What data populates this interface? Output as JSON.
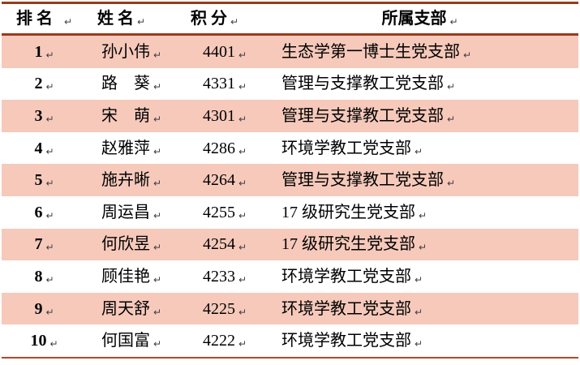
{
  "table": {
    "title_semantics": "party-branch-points-ranking-table",
    "paragraph_mark": "↵",
    "colors": {
      "row_highlight": "#f6c9bb",
      "rule_top_and_header": "#9c3a1e",
      "rule_bottom": "#b5482a",
      "text": "#000000"
    },
    "columns": [
      {
        "key": "rank",
        "label": "排 名"
      },
      {
        "key": "name",
        "label": "姓 名"
      },
      {
        "key": "points",
        "label": "积 分"
      },
      {
        "key": "branch",
        "label": "所属支部"
      }
    ],
    "rows": [
      {
        "rank": "1",
        "name": "孙小伟",
        "points": "4401",
        "branch": "生态学第一博士生党支部",
        "highlighted": true
      },
      {
        "rank": "2",
        "name": "路　葵",
        "points": "4331",
        "branch": "管理与支撑教工党支部",
        "highlighted": false
      },
      {
        "rank": "3",
        "name": "宋　萌",
        "points": "4301",
        "branch": "管理与支撑教工党支部",
        "highlighted": true
      },
      {
        "rank": "4",
        "name": "赵雅萍",
        "points": "4286",
        "branch": "环境学教工党支部",
        "highlighted": false
      },
      {
        "rank": "5",
        "name": "施卉晰",
        "points": "4264",
        "branch": "管理与支撑教工党支部",
        "highlighted": true
      },
      {
        "rank": "6",
        "name": "周运昌",
        "points": "4255",
        "branch": "17 级研究生党支部",
        "highlighted": false
      },
      {
        "rank": "7",
        "name": "何欣昱",
        "points": "4254",
        "branch": "17 级研究生党支部",
        "highlighted": true
      },
      {
        "rank": "8",
        "name": "顾佳艳",
        "points": "4233",
        "branch": "环境学教工党支部",
        "highlighted": false
      },
      {
        "rank": "9",
        "name": "周天舒",
        "points": "4225",
        "branch": "环境学教工党支部",
        "highlighted": true
      },
      {
        "rank": "10",
        "name": "何国富",
        "points": "4222",
        "branch": "环境学教工党支部",
        "highlighted": false
      }
    ]
  }
}
